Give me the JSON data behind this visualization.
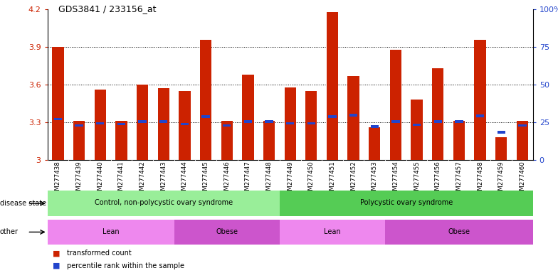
{
  "title": "GDS3841 / 233156_at",
  "samples": [
    "GSM277438",
    "GSM277439",
    "GSM277440",
    "GSM277441",
    "GSM277442",
    "GSM277443",
    "GSM277444",
    "GSM277445",
    "GSM277446",
    "GSM277447",
    "GSM277448",
    "GSM277449",
    "GSM277450",
    "GSM277451",
    "GSM277452",
    "GSM277453",
    "GSM277454",
    "GSM277455",
    "GSM277456",
    "GSM277457",
    "GSM277458",
    "GSM277459",
    "GSM277460"
  ],
  "bar_values": [
    3.9,
    3.31,
    3.56,
    3.31,
    3.6,
    3.57,
    3.55,
    3.96,
    3.31,
    3.68,
    3.31,
    3.58,
    3.55,
    4.18,
    3.67,
    3.26,
    3.88,
    3.48,
    3.73,
    3.31,
    3.96,
    3.18,
    3.31
  ],
  "blue_values": [
    3.325,
    3.275,
    3.29,
    3.285,
    3.305,
    3.305,
    3.285,
    3.345,
    3.275,
    3.305,
    3.305,
    3.29,
    3.29,
    3.345,
    3.355,
    3.265,
    3.305,
    3.28,
    3.305,
    3.305,
    3.35,
    3.22,
    3.275
  ],
  "ymin": 3.0,
  "ymax": 4.2,
  "yticks_left": [
    3.0,
    3.3,
    3.6,
    3.9,
    4.2
  ],
  "ytick_labels_left": [
    "3",
    "3.3",
    "3.6",
    "3.9",
    "4.2"
  ],
  "yticks_right": [
    0,
    25,
    50,
    75,
    100
  ],
  "ytick_labels_right": [
    "0",
    "25",
    "50",
    "75",
    "100%"
  ],
  "bar_color": "#cc2200",
  "blue_color": "#2244cc",
  "bar_width": 0.55,
  "disease_state_groups": [
    {
      "label": "Control, non-polycystic ovary syndrome",
      "start": 0,
      "end": 10,
      "color": "#99ee99"
    },
    {
      "label": "Polycystic ovary syndrome",
      "start": 11,
      "end": 22,
      "color": "#55cc55"
    }
  ],
  "other_groups": [
    {
      "label": "Lean",
      "start": 0,
      "end": 5,
      "color": "#ee88ee"
    },
    {
      "label": "Obese",
      "start": 6,
      "end": 10,
      "color": "#cc55cc"
    },
    {
      "label": "Lean",
      "start": 11,
      "end": 15,
      "color": "#ee88ee"
    },
    {
      "label": "Obese",
      "start": 16,
      "end": 22,
      "color": "#cc55cc"
    }
  ],
  "legend_red_label": "transformed count",
  "legend_blue_label": "percentile rank within the sample",
  "ds_label": "disease state",
  "other_label": "other",
  "xtick_bg_color": "#d8d8d8",
  "chart_bg_color": "#ffffff"
}
